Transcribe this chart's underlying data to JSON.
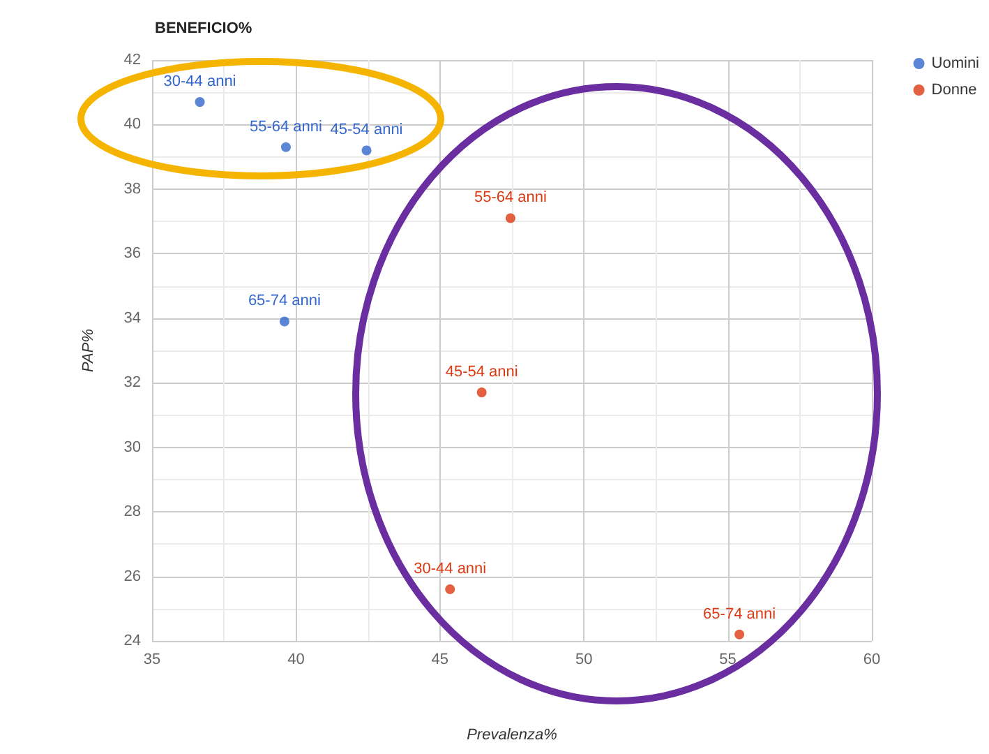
{
  "chart_data": {
    "type": "scatter",
    "title": "BENEFICIO%",
    "xlabel": "Prevalenza%",
    "ylabel": "PAP%",
    "series": [
      {
        "name": "Uomini",
        "color": "#3366cc",
        "x": [
          36.66,
          39.65,
          42.45,
          39.6
        ],
        "values": [
          40.7,
          39.3,
          39.2,
          33.9
        ]
      },
      {
        "name": "Donne",
        "color": "#dc3912",
        "x": [
          45.35,
          46.45,
          47.45,
          55.4
        ],
        "values": [
          25.6,
          31.7,
          37.1,
          24.2
        ]
      }
    ],
    "annotations": [
      {
        "text": "30-44 anni",
        "x": 36.66,
        "y": 40.7
      },
      {
        "text": "55-64 anni",
        "x": 39.65,
        "y": 39.3
      },
      {
        "text": "45-54 anni",
        "x": 42.45,
        "y": 39.2
      },
      {
        "text": "65-74 anni",
        "x": 39.6,
        "y": 33.9
      },
      {
        "text": "30-44 anni",
        "x": 45.35,
        "y": 25.6
      },
      {
        "text": "45-54 anni",
        "x": 46.45,
        "y": 31.7
      },
      {
        "text": "55-64 anni",
        "x": 47.45,
        "y": 37.1
      },
      {
        "text": "65-74 anni",
        "x": 55.4,
        "y": 24.2
      }
    ],
    "xlim": [
      35,
      60
    ],
    "xticks": [
      35,
      40,
      45,
      50,
      55,
      60
    ],
    "ylim": [
      24,
      42
    ],
    "yticks": [
      24,
      26,
      28,
      30,
      32,
      34,
      36,
      38,
      40,
      42
    ],
    "grid": true,
    "legend": "top right",
    "marker": "circle"
  }
}
